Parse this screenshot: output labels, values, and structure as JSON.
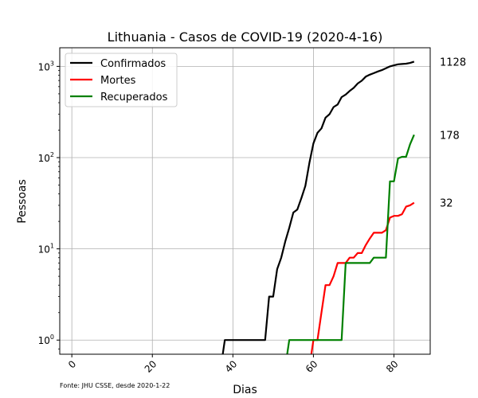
{
  "chart_data": {
    "type": "line",
    "title": "Lithuania - Casos de COVID-19 (2020-4-16)",
    "xlabel": "Dias",
    "ylabel": "Pessoas",
    "yscale": "log",
    "xlim": [
      -3,
      89
    ],
    "ylim": [
      0.7,
      1600
    ],
    "grid": true,
    "legend_position": "upper-left",
    "x_ticks": [
      "0",
      "20",
      "40",
      "60",
      "80"
    ],
    "y_ticks": [
      {
        "value": 1,
        "base": "10",
        "exp": "0"
      },
      {
        "value": 10,
        "base": "10",
        "exp": "1"
      },
      {
        "value": 100,
        "base": "10",
        "exp": "2"
      },
      {
        "value": 1000,
        "base": "10",
        "exp": "3"
      }
    ],
    "source_note": "Fonte: JHU CSSE, desde 2020-1-22",
    "series": [
      {
        "name": "Confirmados",
        "color": "#000000",
        "final_label": "1128",
        "x": [
          37,
          38,
          39,
          40,
          41,
          42,
          43,
          44,
          45,
          46,
          47,
          48,
          49,
          50,
          51,
          52,
          53,
          54,
          55,
          56,
          57,
          58,
          59,
          60,
          61,
          62,
          63,
          64,
          65,
          66,
          67,
          68,
          69,
          70,
          71,
          72,
          73,
          74,
          75,
          76,
          77,
          78,
          79,
          80,
          81,
          82,
          83,
          84,
          85
        ],
        "y": [
          0.5,
          1,
          1,
          1,
          1,
          1,
          1,
          1,
          1,
          1,
          1,
          1,
          3,
          3,
          6,
          8,
          12,
          17,
          25,
          27,
          36,
          49,
          88,
          143,
          187,
          209,
          274,
          299,
          358,
          382,
          460,
          491,
          537,
          581,
          649,
          696,
          771,
          811,
          843,
          880,
          910,
          955,
          999,
          1026,
          1053,
          1062,
          1070,
          1091,
          1128
        ]
      },
      {
        "name": "Mortes",
        "color": "#ff0000",
        "final_label": "32",
        "x": [
          59,
          60,
          61,
          62,
          63,
          64,
          65,
          66,
          67,
          68,
          69,
          70,
          71,
          72,
          73,
          74,
          75,
          76,
          77,
          78,
          79,
          80,
          81,
          82,
          83,
          84,
          85
        ],
        "y": [
          0.5,
          1,
          1,
          2,
          4,
          4,
          5,
          7,
          7,
          7,
          8,
          8,
          9,
          9,
          11,
          13,
          15,
          15,
          15,
          16,
          22,
          23,
          23,
          24,
          29,
          30,
          32
        ]
      },
      {
        "name": "Recuperados",
        "color": "#008000",
        "final_label": "178",
        "x": [
          53,
          54,
          55,
          56,
          57,
          58,
          59,
          60,
          61,
          62,
          63,
          64,
          65,
          66,
          67,
          68,
          69,
          70,
          71,
          72,
          73,
          74,
          75,
          76,
          77,
          78,
          79,
          80,
          81,
          82,
          83,
          84,
          85
        ],
        "y": [
          0.5,
          1,
          1,
          1,
          1,
          1,
          1,
          1,
          1,
          1,
          1,
          1,
          1,
          1,
          1,
          7,
          7,
          7,
          7,
          7,
          7,
          7,
          8,
          8,
          8,
          8,
          55,
          55,
          98,
          102,
          102,
          140,
          178
        ]
      }
    ]
  }
}
